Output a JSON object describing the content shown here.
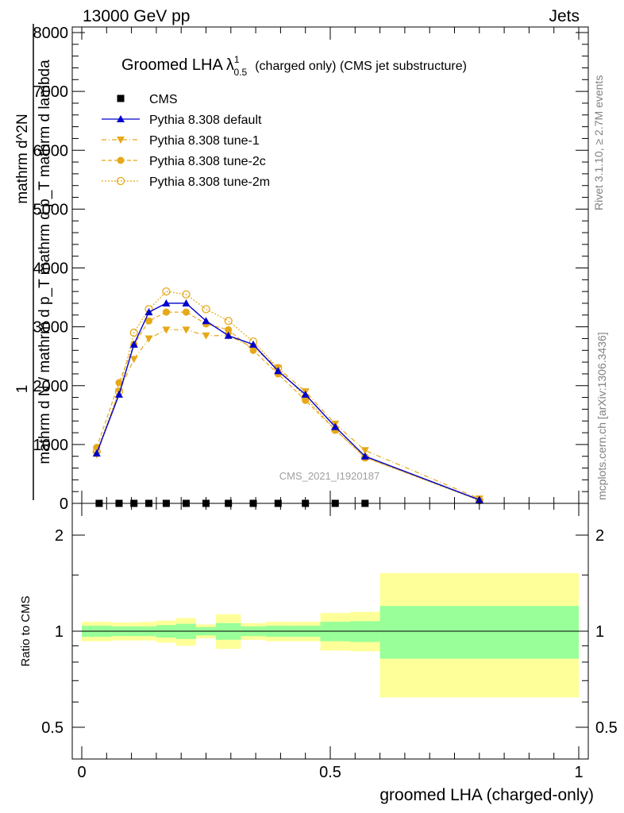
{
  "header": {
    "left": "13000 GeV pp",
    "right": "Jets"
  },
  "title": {
    "main": "Groomed LHA",
    "symbol": "λ",
    "sup": "1",
    "sub": "0.5",
    "extra": "(charged only) (CMS jet substructure)"
  },
  "side_labels": {
    "rivet": "Rivet 3.1.10, ≥ 2.7M events",
    "mcplots": "mcplots.cern.ch [arXiv:1306.3436]"
  },
  "watermark": "CMS_2021_I1920187",
  "colors": {
    "blue": "#0000cc",
    "orange": "#e6a817",
    "green_band": "#99ff99",
    "yellow_band": "#ffff99"
  },
  "chart_data": [
    {
      "type": "line",
      "ylabel_top_frac": "1",
      "ylabel_bottom_frac": "mathrm d N / mathrm d p_T mathrm d p_T mathrm d lambda",
      "ylabel_top_right": "mathrm d^2N",
      "xlim": [
        0,
        1
      ],
      "ylim": [
        0,
        8000
      ],
      "yticks": [
        0,
        1000,
        2000,
        3000,
        4000,
        5000,
        6000,
        7000,
        8000
      ],
      "ytick_labels": [
        "0",
        "1000",
        "2000",
        "3000",
        "4000",
        "5000",
        "6000",
        "7000",
        "8000"
      ],
      "legend_position": "top-left",
      "series": [
        {
          "name": "CMS",
          "marker": "square",
          "x": [
            0.035,
            0.075,
            0.105,
            0.135,
            0.17,
            0.21,
            0.25,
            0.295,
            0.345,
            0.395,
            0.45,
            0.51,
            0.57
          ],
          "y": [
            0,
            0,
            0,
            0,
            0,
            0,
            0,
            0,
            0,
            0,
            0,
            0,
            0
          ]
        },
        {
          "name": "Pythia 8.308 default",
          "marker": "triangle-up",
          "line": "solid",
          "x": [
            0.03,
            0.075,
            0.105,
            0.135,
            0.17,
            0.21,
            0.25,
            0.295,
            0.345,
            0.395,
            0.45,
            0.51,
            0.57,
            0.8
          ],
          "y": [
            850,
            1850,
            2700,
            3250,
            3400,
            3400,
            3100,
            2850,
            2700,
            2250,
            1850,
            1300,
            800,
            60
          ]
        },
        {
          "name": "Pythia 8.308 tune-1",
          "marker": "triangle-down",
          "line": "dashdot",
          "x": [
            0.03,
            0.075,
            0.105,
            0.135,
            0.17,
            0.21,
            0.25,
            0.295,
            0.345,
            0.395,
            0.45,
            0.51,
            0.57,
            0.8
          ],
          "y": [
            830,
            1900,
            2450,
            2800,
            2950,
            2950,
            2850,
            2850,
            2650,
            2300,
            1900,
            1350,
            900,
            80
          ]
        },
        {
          "name": "Pythia 8.308 tune-2c",
          "marker": "circle",
          "line": "dashed",
          "x": [
            0.03,
            0.075,
            0.105,
            0.135,
            0.17,
            0.21,
            0.25,
            0.295,
            0.345,
            0.395,
            0.45,
            0.51,
            0.57,
            0.8
          ],
          "y": [
            950,
            2050,
            2700,
            3100,
            3250,
            3250,
            3050,
            2950,
            2600,
            2200,
            1750,
            1250,
            780,
            60
          ]
        },
        {
          "name": "Pythia 8.308 tune-2m",
          "marker": "circle-open",
          "line": "dotted",
          "x": [
            0.03,
            0.075,
            0.105,
            0.135,
            0.17,
            0.21,
            0.25,
            0.295,
            0.345,
            0.395,
            0.45,
            0.51,
            0.57,
            0.8
          ],
          "y": [
            880,
            1900,
            2900,
            3300,
            3600,
            3550,
            3300,
            3100,
            2750,
            2300,
            1800,
            1250,
            780,
            50
          ]
        }
      ]
    },
    {
      "type": "area",
      "ylabel": "Ratio to CMS",
      "xlabel": "groomed LHA (charged-only)",
      "xlim": [
        0,
        1
      ],
      "xticks": [
        0,
        0.5,
        1
      ],
      "xtick_labels": [
        "0",
        "0.5",
        "1"
      ],
      "yticks": [
        0.5,
        1,
        2
      ],
      "ytick_labels": [
        "0.5",
        "1",
        "2"
      ],
      "y_scale": "log",
      "ylim": [
        0.4,
        2.3
      ],
      "bins": [
        {
          "x0": 0.0,
          "x1": 0.06,
          "green": [
            0.96,
            1.04
          ],
          "yellow": [
            0.93,
            1.07
          ]
        },
        {
          "x0": 0.06,
          "x1": 0.09,
          "green": [
            0.965,
            1.035
          ],
          "yellow": [
            0.935,
            1.065
          ]
        },
        {
          "x0": 0.09,
          "x1": 0.12,
          "green": [
            0.965,
            1.035
          ],
          "yellow": [
            0.935,
            1.065
          ]
        },
        {
          "x0": 0.12,
          "x1": 0.15,
          "green": [
            0.965,
            1.035
          ],
          "yellow": [
            0.935,
            1.07
          ]
        },
        {
          "x0": 0.15,
          "x1": 0.19,
          "green": [
            0.955,
            1.045
          ],
          "yellow": [
            0.92,
            1.08
          ]
        },
        {
          "x0": 0.19,
          "x1": 0.23,
          "green": [
            0.945,
            1.055
          ],
          "yellow": [
            0.9,
            1.1
          ]
        },
        {
          "x0": 0.23,
          "x1": 0.27,
          "green": [
            0.97,
            1.03
          ],
          "yellow": [
            0.95,
            1.05
          ]
        },
        {
          "x0": 0.27,
          "x1": 0.32,
          "green": [
            0.94,
            1.06
          ],
          "yellow": [
            0.88,
            1.13
          ]
        },
        {
          "x0": 0.32,
          "x1": 0.37,
          "green": [
            0.965,
            1.035
          ],
          "yellow": [
            0.94,
            1.06
          ]
        },
        {
          "x0": 0.37,
          "x1": 0.42,
          "green": [
            0.96,
            1.04
          ],
          "yellow": [
            0.93,
            1.07
          ]
        },
        {
          "x0": 0.42,
          "x1": 0.48,
          "green": [
            0.96,
            1.04
          ],
          "yellow": [
            0.93,
            1.07
          ]
        },
        {
          "x0": 0.48,
          "x1": 0.54,
          "green": [
            0.93,
            1.07
          ],
          "yellow": [
            0.87,
            1.14
          ]
        },
        {
          "x0": 0.54,
          "x1": 0.6,
          "green": [
            0.925,
            1.075
          ],
          "yellow": [
            0.865,
            1.15
          ]
        },
        {
          "x0": 0.6,
          "x1": 1.0,
          "green": [
            0.82,
            1.2
          ],
          "yellow": [
            0.62,
            1.52
          ]
        }
      ]
    }
  ]
}
